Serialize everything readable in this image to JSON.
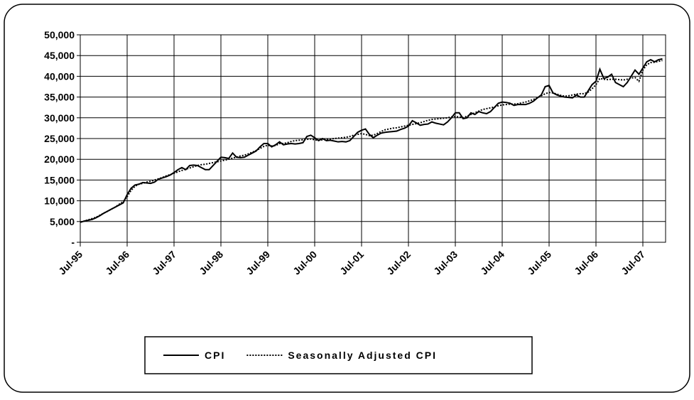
{
  "chart_data": {
    "type": "line",
    "categories": [
      "Jul-95",
      null,
      null,
      null,
      null,
      null,
      null,
      null,
      null,
      null,
      null,
      null,
      "Jul-96",
      null,
      null,
      null,
      null,
      null,
      null,
      null,
      null,
      null,
      null,
      null,
      "Jul-97",
      null,
      null,
      null,
      null,
      null,
      null,
      null,
      null,
      null,
      null,
      null,
      "Jul-98",
      null,
      null,
      null,
      null,
      null,
      null,
      null,
      null,
      null,
      null,
      null,
      "Jul-99",
      null,
      null,
      null,
      null,
      null,
      null,
      null,
      null,
      null,
      null,
      null,
      "Jul-00",
      null,
      null,
      null,
      null,
      null,
      null,
      null,
      null,
      null,
      null,
      null,
      "Jul-01",
      null,
      null,
      null,
      null,
      null,
      null,
      null,
      null,
      null,
      null,
      null,
      "Jul-02",
      null,
      null,
      null,
      null,
      null,
      null,
      null,
      null,
      null,
      null,
      null,
      "Jul-03",
      null,
      null,
      null,
      null,
      null,
      null,
      null,
      null,
      null,
      null,
      null,
      "Jul-04",
      null,
      null,
      null,
      null,
      null,
      null,
      null,
      null,
      null,
      null,
      null,
      "Jul-05",
      null,
      null,
      null,
      null,
      null,
      null,
      null,
      null,
      null,
      null,
      null,
      "Jul-06",
      null,
      null,
      null,
      null,
      null,
      null,
      null,
      null,
      null,
      null,
      null,
      "Jul-07",
      null,
      null,
      null,
      null,
      null
    ],
    "series": [
      {
        "name": "CPI",
        "color": "#000000",
        "dash": "solid",
        "values": [
          4800,
          5100,
          5300,
          5500,
          5900,
          6400,
          7000,
          7500,
          8000,
          8500,
          9000,
          9500,
          11500,
          13000,
          13800,
          14000,
          14400,
          14300,
          14200,
          14500,
          15200,
          15500,
          15800,
          16200,
          16800,
          17500,
          18000,
          17500,
          18500,
          18600,
          18500,
          18000,
          17500,
          17500,
          18500,
          19500,
          20500,
          20400,
          20200,
          21500,
          20500,
          20400,
          20500,
          21000,
          21500,
          22000,
          23000,
          23800,
          23800,
          23000,
          23500,
          24200,
          23500,
          23700,
          23800,
          23700,
          23800,
          24000,
          25500,
          25800,
          25200,
          24500,
          25000,
          24500,
          24600,
          24400,
          24200,
          24300,
          24200,
          24500,
          25500,
          26500,
          27000,
          27300,
          26000,
          25200,
          25800,
          26300,
          26500,
          26600,
          26700,
          26800,
          27200,
          27500,
          28000,
          29300,
          28800,
          28200,
          28400,
          28500,
          29000,
          28700,
          28500,
          28300,
          29000,
          30000,
          31200,
          31200,
          29800,
          30000,
          31200,
          30800,
          31500,
          31200,
          31000,
          31500,
          32500,
          33500,
          33800,
          33700,
          33500,
          33000,
          33200,
          33200,
          33200,
          33500,
          34000,
          34800,
          35500,
          37500,
          37800,
          36000,
          35500,
          35200,
          35000,
          34900,
          34800,
          35500,
          35000,
          35000,
          36500,
          38000,
          38800,
          41700,
          39500,
          39800,
          40500,
          38500,
          38000,
          37500,
          38500,
          40000,
          41500,
          40500,
          42000,
          43500,
          44000,
          43500,
          44000,
          44200
        ]
      },
      {
        "name": "Seasonally Adjusted CPI",
        "color": "#000000",
        "dash": "dotted",
        "values": [
          4900,
          5100,
          5400,
          5700,
          6000,
          6500,
          7000,
          7500,
          8000,
          8500,
          9200,
          9800,
          11000,
          12500,
          13500,
          14000,
          14200,
          14500,
          14700,
          15000,
          15300,
          15600,
          16000,
          16300,
          16600,
          17000,
          17300,
          17600,
          17900,
          18200,
          18500,
          18700,
          18800,
          19000,
          19200,
          19400,
          19600,
          19800,
          20000,
          20300,
          20500,
          20800,
          21000,
          21300,
          21700,
          22100,
          22600,
          23100,
          23400,
          23200,
          23300,
          23800,
          23800,
          24000,
          24300,
          24500,
          24600,
          24700,
          24800,
          24900,
          24700,
          24600,
          24700,
          24800,
          24900,
          25000,
          25100,
          25200,
          25300,
          25500,
          25800,
          26000,
          26200,
          26000,
          25700,
          25800,
          26200,
          26700,
          27100,
          27300,
          27500,
          27600,
          27800,
          28000,
          28200,
          28400,
          28600,
          28800,
          29100,
          29400,
          29600,
          29700,
          29800,
          29900,
          30000,
          30200,
          30300,
          30200,
          30000,
          30400,
          30800,
          31200,
          31600,
          32000,
          32200,
          32400,
          32600,
          32900,
          33100,
          33200,
          33300,
          33300,
          33400,
          33600,
          33800,
          34100,
          34400,
          34800,
          35300,
          35800,
          36100,
          36000,
          35700,
          35400,
          35200,
          35300,
          35500,
          35700,
          35800,
          35800,
          36200,
          37000,
          38000,
          39500,
          39300,
          39200,
          39300,
          39300,
          39200,
          39100,
          39300,
          39600,
          39700,
          38800,
          41500,
          42800,
          43300,
          43400,
          43600,
          43800
        ]
      }
    ],
    "ylim": [
      0,
      50000
    ],
    "yticks": [
      {
        "value": 0,
        "label": "-"
      },
      {
        "value": 5000,
        "label": "5,000"
      },
      {
        "value": 10000,
        "label": "10,000"
      },
      {
        "value": 15000,
        "label": "15,000"
      },
      {
        "value": 20000,
        "label": "20,000"
      },
      {
        "value": 25000,
        "label": "25,000"
      },
      {
        "value": 30000,
        "label": "30,000"
      },
      {
        "value": 35000,
        "label": "35,000"
      },
      {
        "value": 40000,
        "label": "40,000"
      },
      {
        "value": 45000,
        "label": "45,000"
      },
      {
        "value": 50000,
        "label": "50,000"
      }
    ],
    "grid": true,
    "legend": "bottom"
  }
}
